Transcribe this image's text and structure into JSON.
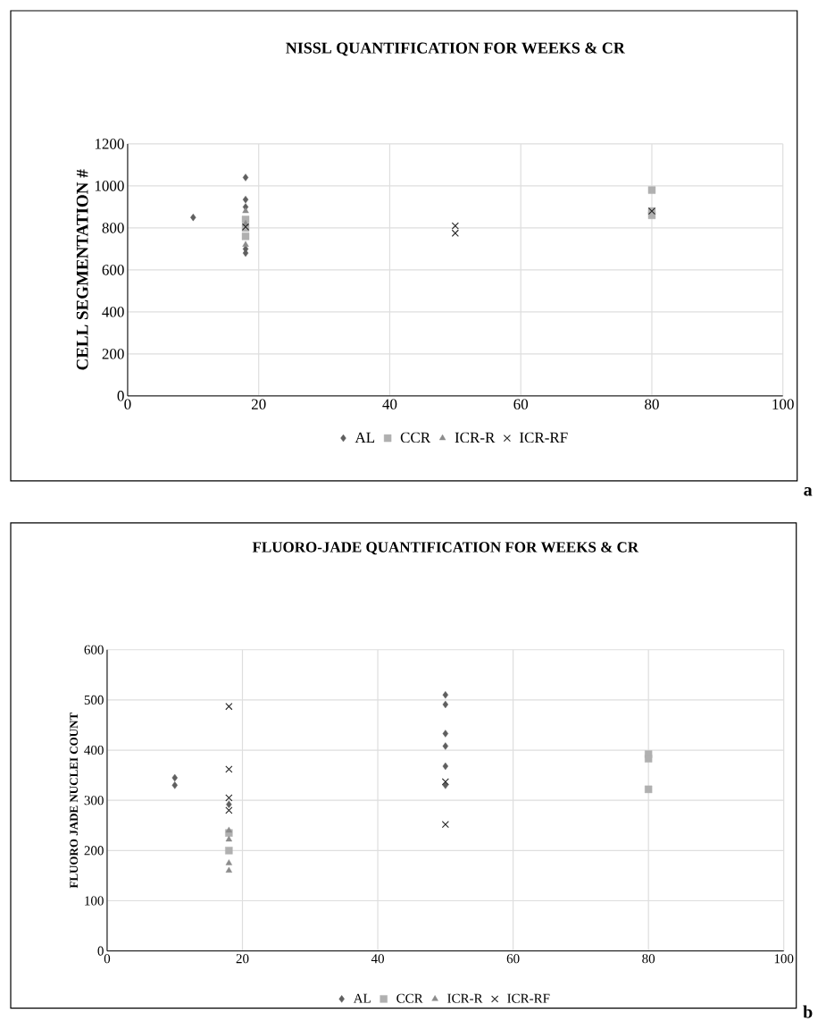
{
  "chart_data": [
    {
      "type": "scatter",
      "title": "NISSL QUANTIFICATION FOR WEEKS & CR",
      "ylabel": "CELL SEGMENTATION #",
      "xlim": [
        0,
        100
      ],
      "xticks": [
        0,
        20,
        40,
        60,
        80,
        100
      ],
      "ylim": [
        0,
        1200
      ],
      "yticks": [
        0,
        200,
        400,
        600,
        800,
        1000,
        1200
      ],
      "grid": true,
      "legend": "bottom",
      "annotations": [
        "a"
      ],
      "series": [
        {
          "name": "AL",
          "color": "#5f5f5f",
          "marker": "diamond",
          "x": [
            10,
            18,
            18,
            18,
            18,
            18
          ],
          "values": [
            850,
            1040,
            935,
            900,
            700,
            680
          ]
        },
        {
          "name": "CCR",
          "color": "#b0b0b0",
          "marker": "square",
          "x": [
            18,
            18,
            18,
            80,
            80,
            80
          ],
          "values": [
            840,
            800,
            760,
            980,
            880,
            860
          ]
        },
        {
          "name": "ICR-R",
          "color": "#8c8c8c",
          "marker": "triangle",
          "x": [
            18,
            18,
            18
          ],
          "values": [
            880,
            820,
            720
          ]
        },
        {
          "name": "ICR-RF",
          "color": "#262626",
          "marker": "cross",
          "x": [
            18,
            50,
            50,
            80
          ],
          "values": [
            805,
            810,
            775,
            880
          ]
        }
      ]
    },
    {
      "type": "scatter",
      "title": "FLUORO-JADE QUANTIFICATION FOR WEEKS & CR",
      "ylabel": "FLUORO JADE NUCLEI COUNT",
      "xlim": [
        0,
        100
      ],
      "xticks": [
        0,
        20,
        40,
        60,
        80,
        100
      ],
      "ylim": [
        0,
        600
      ],
      "yticks": [
        0,
        100,
        200,
        300,
        400,
        500,
        600
      ],
      "grid": true,
      "legend": "bottom",
      "annotations": [
        "b"
      ],
      "series": [
        {
          "name": "AL",
          "color": "#5f5f5f",
          "marker": "diamond",
          "x": [
            10,
            10,
            18,
            50,
            50,
            50,
            50,
            50,
            50
          ],
          "values": [
            345,
            330,
            292,
            510,
            491,
            433,
            408,
            368,
            330
          ]
        },
        {
          "name": "CCR",
          "color": "#b0b0b0",
          "marker": "square",
          "x": [
            18,
            18,
            80,
            80,
            80
          ],
          "values": [
            235,
            200,
            392,
            383,
            322
          ]
        },
        {
          "name": "ICR-R",
          "color": "#8c8c8c",
          "marker": "triangle",
          "x": [
            18,
            18,
            18,
            18
          ],
          "values": [
            240,
            222,
            175,
            160
          ]
        },
        {
          "name": "ICR-RF",
          "color": "#262626",
          "marker": "cross",
          "x": [
            18,
            18,
            18,
            18,
            50,
            50
          ],
          "values": [
            487,
            362,
            305,
            280,
            337,
            252
          ]
        }
      ]
    }
  ]
}
